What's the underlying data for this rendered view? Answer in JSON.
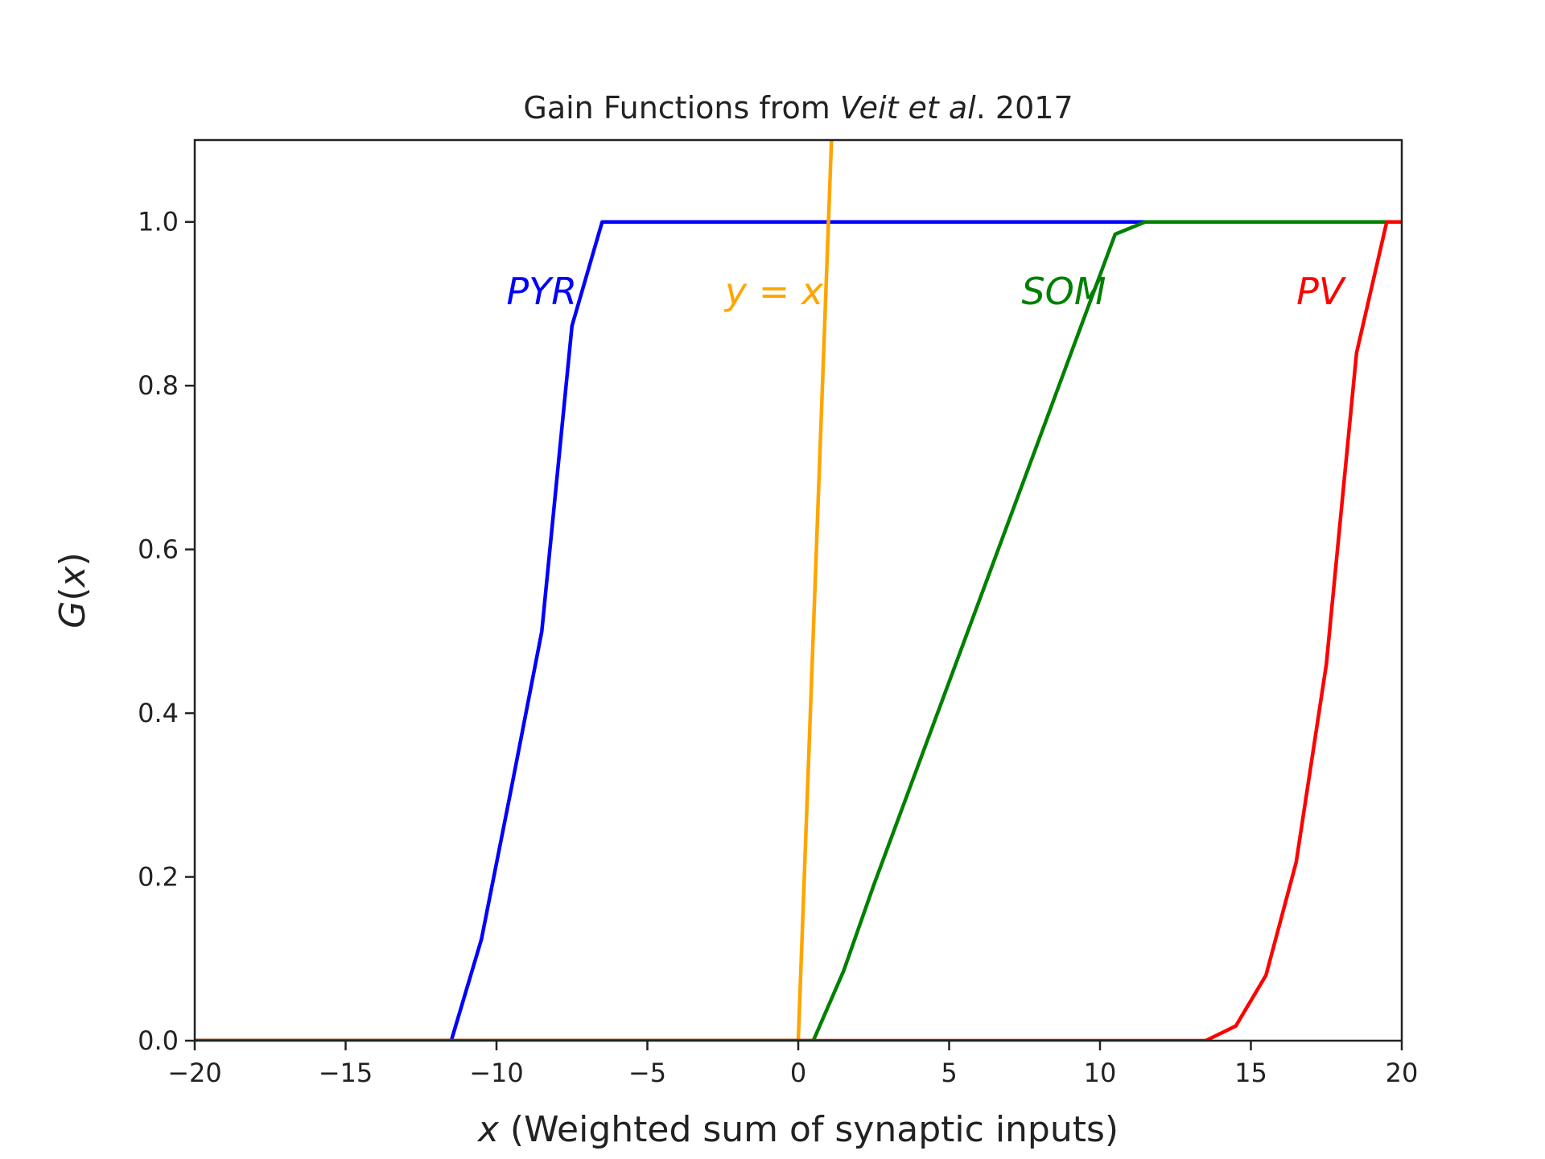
{
  "chart_data": {
    "type": "line",
    "title_parts": {
      "prefix": "Gain Functions from ",
      "italic": "Veit et al",
      "suffix": ".  2017"
    },
    "xlabel_var": "x",
    "xlabel_rest": " (Weighted sum of synaptic inputs)",
    "ylabel_var": "x",
    "ylabel_func": "G",
    "xlim": [
      -20,
      20
    ],
    "ylim": [
      0,
      1.1
    ],
    "xticks": [
      -20,
      -15,
      -10,
      -5,
      0,
      5,
      10,
      15,
      20
    ],
    "xtick_labels": [
      "−20",
      "−15",
      "−10",
      "−5",
      "0",
      "5",
      "10",
      "15",
      "20"
    ],
    "yticks": [
      0.0,
      0.2,
      0.4,
      0.6,
      0.8,
      1.0
    ],
    "ytick_labels": [
      "0.0",
      "0.2",
      "0.4",
      "0.6",
      "0.8",
      "1.0"
    ],
    "grid": false,
    "series": [
      {
        "name": "PYR",
        "color": "#0000ff",
        "points": [
          [
            -20,
            0
          ],
          [
            -11.5,
            0
          ],
          [
            -10.5,
            0.124
          ],
          [
            -9.5,
            0.31
          ],
          [
            -8.5,
            0.5
          ],
          [
            -7.5,
            0.873
          ],
          [
            -6.5,
            1.0
          ],
          [
            20,
            1.0
          ]
        ]
      },
      {
        "name": "y = x",
        "color": "#ffa500",
        "points": [
          [
            -20,
            0
          ],
          [
            0,
            0
          ],
          [
            1.1,
            1.1
          ]
        ]
      },
      {
        "name": "SOM",
        "color": "#008000",
        "points": [
          [
            -20,
            0
          ],
          [
            0.5,
            0
          ],
          [
            1.5,
            0.085
          ],
          [
            2.5,
            0.19
          ],
          [
            10.5,
            0.985
          ],
          [
            11.5,
            1.0
          ],
          [
            20,
            1.0
          ]
        ]
      },
      {
        "name": "PV",
        "color": "#ff0000",
        "points": [
          [
            -20,
            0
          ],
          [
            13.5,
            0
          ],
          [
            14.5,
            0.018
          ],
          [
            15.5,
            0.08
          ],
          [
            16.5,
            0.218
          ],
          [
            17.5,
            0.46
          ],
          [
            18.5,
            0.84
          ],
          [
            19.5,
            1.0
          ],
          [
            20,
            1.0
          ]
        ]
      }
    ],
    "annotations": [
      {
        "text": "PYR",
        "x": -8.5,
        "y": 0.915,
        "color": "#0000ff",
        "math": false
      },
      {
        "text": "y = x",
        "x": -0.8,
        "y": 0.915,
        "color": "#ffa500",
        "math": true
      },
      {
        "text": "SOM",
        "x": 8.8,
        "y": 0.915,
        "color": "#008000",
        "math": false
      },
      {
        "text": "PV",
        "x": 17.3,
        "y": 0.915,
        "color": "#ff0000",
        "math": false
      }
    ]
  }
}
